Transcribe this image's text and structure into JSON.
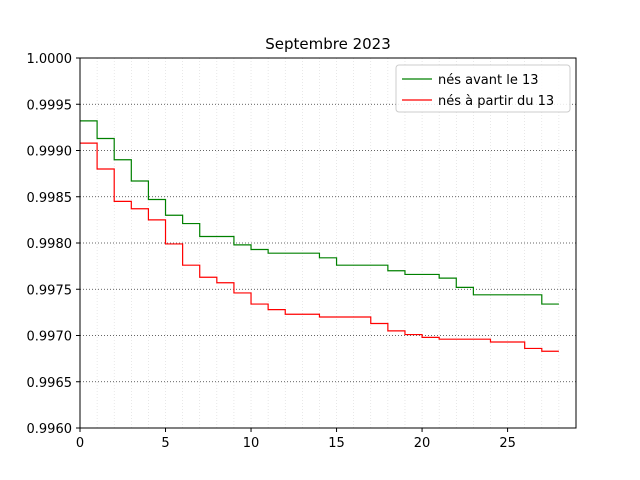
{
  "chart_data": {
    "type": "line",
    "step": "post",
    "title": "Septembre 2023",
    "xlabel": "",
    "ylabel": "",
    "xlim": [
      0,
      29
    ],
    "ylim": [
      0.996,
      1.0
    ],
    "xticks": [
      0,
      5,
      10,
      15,
      20,
      25
    ],
    "xtick_labels": [
      "0",
      "5",
      "10",
      "15",
      "20",
      "25"
    ],
    "yticks": [
      0.996,
      0.9965,
      0.997,
      0.9975,
      0.998,
      0.9985,
      0.999,
      0.9995,
      1.0
    ],
    "ytick_labels": [
      "0.9960",
      "0.9965",
      "0.9970",
      "0.9975",
      "0.9980",
      "0.9985",
      "0.9990",
      "0.9995",
      "1.0000"
    ],
    "grid": {
      "major_y": "dotted",
      "minor_x": "dotted-light"
    },
    "legend": "top-right",
    "x": [
      0,
      1,
      2,
      3,
      4,
      5,
      6,
      7,
      8,
      9,
      10,
      11,
      12,
      13,
      14,
      15,
      16,
      17,
      18,
      19,
      20,
      21,
      22,
      23,
      24,
      25,
      26,
      27,
      28
    ],
    "series": [
      {
        "name": "nés avant le 13",
        "color": "#008000",
        "values": [
          0.99932,
          0.99913,
          0.9989,
          0.99867,
          0.99847,
          0.9983,
          0.99821,
          0.99807,
          0.99807,
          0.99798,
          0.99793,
          0.99789,
          0.99789,
          0.99789,
          0.99784,
          0.99776,
          0.99776,
          0.99776,
          0.9977,
          0.99766,
          0.99766,
          0.99762,
          0.99752,
          0.99744,
          0.99744,
          0.99744,
          0.99744,
          0.99734,
          0.99734
        ]
      },
      {
        "name": "nés à partir du 13",
        "color": "#ff0000",
        "values": [
          0.99908,
          0.9988,
          0.99845,
          0.99837,
          0.99825,
          0.99799,
          0.99776,
          0.99763,
          0.99757,
          0.99746,
          0.99734,
          0.99728,
          0.99723,
          0.99723,
          0.9972,
          0.9972,
          0.9972,
          0.99713,
          0.99705,
          0.99701,
          0.99698,
          0.99696,
          0.99696,
          0.99696,
          0.99693,
          0.99693,
          0.99686,
          0.99683,
          0.99683
        ]
      }
    ]
  }
}
